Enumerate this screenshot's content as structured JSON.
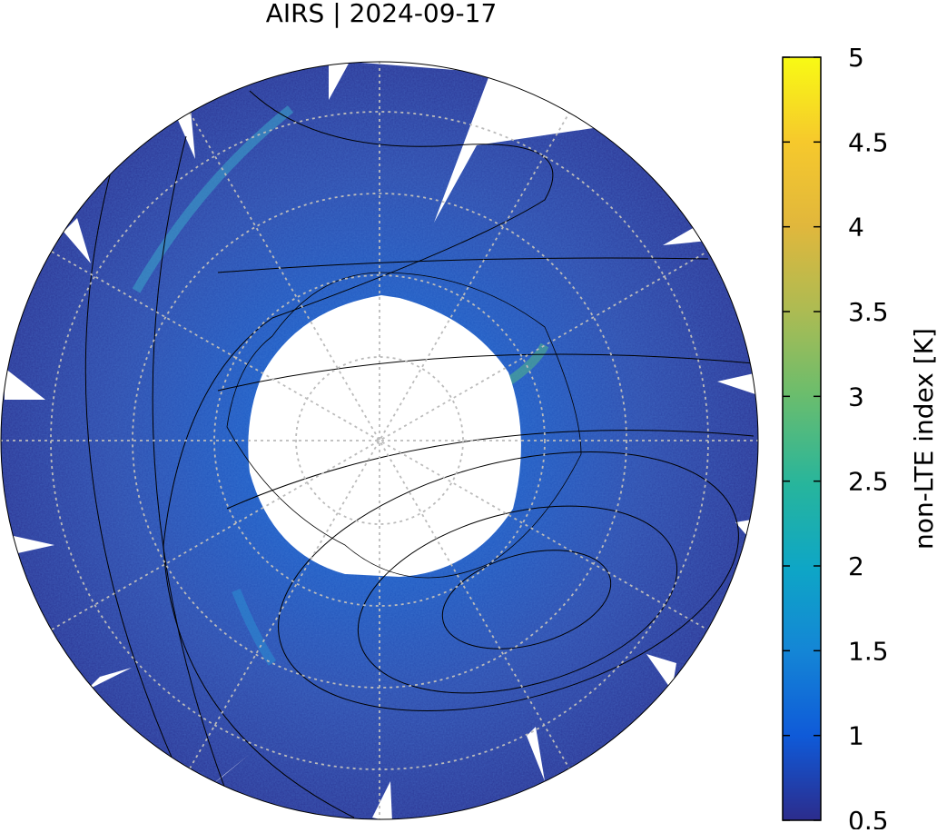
{
  "title": "AIRS | 2024-09-17",
  "colorbar": {
    "label": "non-LTE index [K]",
    "lim": [
      0.5,
      5
    ],
    "ticks": [
      0.5,
      1,
      1.5,
      2,
      2.5,
      3,
      3.5,
      4,
      4.5,
      5
    ]
  }
}
